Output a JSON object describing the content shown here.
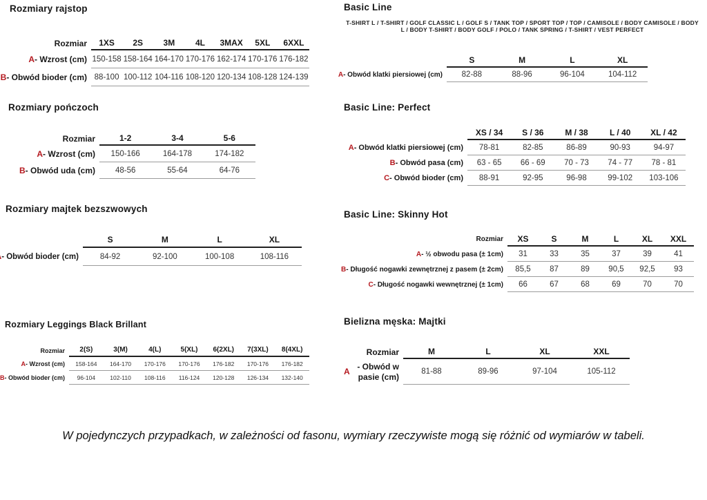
{
  "page": {
    "note": "W pojedynczych przypadkach, w zależności od fasonu, wymiary rzeczywiste mogą się różnić od wymiarów w tabeli.",
    "accent_red": "#b5191f",
    "rule_dark": "#1f1f1f",
    "rule_gray": "#9b9b9b"
  },
  "tables": [
    {
      "title": "Rozmiary rajstop",
      "size_label": "Rozmiar",
      "columns": [
        "1XS",
        "2S",
        "3M",
        "4L",
        "3MAX",
        "5XL",
        "6XXL"
      ],
      "rows": [
        {
          "letter": "A",
          "label": "Wzrost (cm)",
          "values": [
            "150-158",
            "158-164",
            "164-170",
            "170-176",
            "162-174",
            "170-176",
            "176-182"
          ]
        },
        {
          "letter": "B",
          "label": "Obwód bioder (cm)",
          "values": [
            "88-100",
            "100-112",
            "104-116",
            "108-120",
            "120-134",
            "108-128",
            "124-139"
          ]
        }
      ]
    },
    {
      "title": "Rozmiary pończoch",
      "size_label": "Rozmiar",
      "columns": [
        "1-2",
        "3-4",
        "5-6"
      ],
      "rows": [
        {
          "letter": "A",
          "label": "Wzrost (cm)",
          "values": [
            "150-166",
            "164-178",
            "174-182"
          ]
        },
        {
          "letter": "B",
          "label": "Obwód uda (cm)",
          "values": [
            "48-56",
            "55-64",
            "64-76"
          ]
        }
      ]
    },
    {
      "title": "Rozmiary majtek bezszwowych",
      "size_label": "",
      "columns": [
        "S",
        "M",
        "L",
        "XL"
      ],
      "rows": [
        {
          "letter": "A",
          "label": "Obwód bioder (cm)",
          "values": [
            "84-92",
            "92-100",
            "100-108",
            "108-116"
          ]
        }
      ]
    },
    {
      "title": "Rozmiary Leggings Black Brillant",
      "size_label": "Rozmiar",
      "columns": [
        "2(S)",
        "3(M)",
        "4(L)",
        "5(XL)",
        "6(2XL)",
        "7(3XL)",
        "8(4XL)"
      ],
      "rows": [
        {
          "letter": "A",
          "label": "Wzrost (cm)",
          "values": [
            "158-164",
            "164-170",
            "170-176",
            "170-176",
            "176-182",
            "170-176",
            "176-182"
          ]
        },
        {
          "letter": "B",
          "label": "Obwód bioder (cm)",
          "values": [
            "96-104",
            "102-110",
            "108-116",
            "116-124",
            "120-128",
            "126-134",
            "132-140"
          ]
        }
      ]
    },
    {
      "title": "Basic Line",
      "description": "T-SHIRT L / T-SHIRT / GOLF CLASSIC L / GOLF S / TANK TOP / SPORT TOP / TOP / CAMISOLE / BODY CAMISOLE / BODY L / BODY T-SHIRT / BODY GOLF / POLO / TANK SPRING / T-SHIRT / VEST PERFECT",
      "size_label": "",
      "columns": [
        "S",
        "M",
        "L",
        "XL"
      ],
      "rows": [
        {
          "letter": "A",
          "label": "Obwód klatki piersiowej (cm)",
          "values": [
            "82-88",
            "88-96",
            "96-104",
            "104-112"
          ]
        }
      ]
    },
    {
      "title": "Basic Line: Perfect",
      "size_label": "",
      "columns": [
        "XS / 34",
        "S / 36",
        "M / 38",
        "L / 40",
        "XL / 42"
      ],
      "rows": [
        {
          "letter": "A",
          "label": "Obwód klatki piersiowej (cm)",
          "values": [
            "78-81",
            "82-85",
            "86-89",
            "90-93",
            "94-97"
          ]
        },
        {
          "letter": "B",
          "label": "Obwód pasa (cm)",
          "values": [
            "63 - 65",
            "66 - 69",
            "70 - 73",
            "74 - 77",
            "78 - 81"
          ]
        },
        {
          "letter": "C",
          "label": "Obwód bioder (cm)",
          "values": [
            "88-91",
            "92-95",
            "96-98",
            "99-102",
            "103-106"
          ]
        }
      ]
    },
    {
      "title": "Basic Line: Skinny Hot",
      "size_label": "Rozmiar",
      "columns": [
        "XS",
        "S",
        "M",
        "L",
        "XL",
        "XXL"
      ],
      "rows": [
        {
          "letter": "A",
          "label": "½ obwodu pasa (± 1cm)",
          "values": [
            "31",
            "33",
            "35",
            "37",
            "39",
            "41"
          ]
        },
        {
          "letter": "B",
          "label": "Długość nogawki zewnętrznej z pasem (± 2cm)",
          "values": [
            "85,5",
            "87",
            "89",
            "90,5",
            "92,5",
            "93"
          ]
        },
        {
          "letter": "C",
          "label": "Długość nogawki wewnętrznej (± 1cm)",
          "values": [
            "66",
            "67",
            "68",
            "69",
            "70",
            "70"
          ]
        }
      ]
    },
    {
      "title": "Bielizna męska: Majtki",
      "size_label": "Rozmiar",
      "columns": [
        "M",
        "L",
        "XL",
        "XXL"
      ],
      "rows": [
        {
          "letter": "A",
          "label": "Obwód w pasie (cm)",
          "values": [
            "81-88",
            "89-96",
            "97-104",
            "105-112"
          ]
        }
      ]
    }
  ]
}
